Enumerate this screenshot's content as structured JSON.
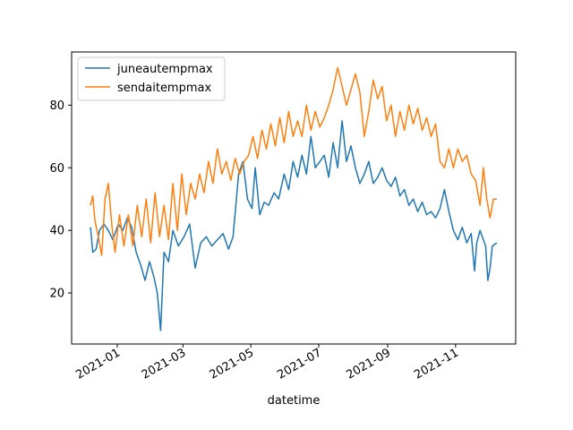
{
  "chart_data": {
    "type": "line",
    "title": "",
    "xlabel": "datetime",
    "ylabel": "",
    "x_start": "2020-12-08",
    "x_end": "2021-12-08",
    "xlim": [
      "2020-11-21",
      "2021-12-25"
    ],
    "ylim": [
      3.7,
      97.0
    ],
    "x_ticks": [
      {
        "date": "2021-01-01",
        "label": "2021-01"
      },
      {
        "date": "2021-03-01",
        "label": "2021-03"
      },
      {
        "date": "2021-05-01",
        "label": "2021-05"
      },
      {
        "date": "2021-07-01",
        "label": "2021-07"
      },
      {
        "date": "2021-09-01",
        "label": "2021-09"
      },
      {
        "date": "2021-11-01",
        "label": "2021-11"
      }
    ],
    "y_ticks": [
      20,
      40,
      60,
      80
    ],
    "grid": false,
    "legend": "top-left",
    "series": [
      {
        "name": "juneautempmax",
        "color": "#1f77b4",
        "points": [
          [
            "2020-12-08",
            41
          ],
          [
            "2020-12-10",
            33
          ],
          [
            "2020-12-13",
            34
          ],
          [
            "2020-12-16",
            40
          ],
          [
            "2020-12-20",
            42
          ],
          [
            "2020-12-24",
            40
          ],
          [
            "2020-12-28",
            37
          ],
          [
            "2021-01-02",
            42
          ],
          [
            "2021-01-06",
            40
          ],
          [
            "2021-01-10",
            44
          ],
          [
            "2021-01-14",
            41
          ],
          [
            "2021-01-18",
            33
          ],
          [
            "2021-01-22",
            29
          ],
          [
            "2021-01-26",
            24
          ],
          [
            "2021-01-30",
            30
          ],
          [
            "2021-02-03",
            25
          ],
          [
            "2021-02-06",
            20
          ],
          [
            "2021-02-09",
            8
          ],
          [
            "2021-02-12",
            33
          ],
          [
            "2021-02-16",
            30
          ],
          [
            "2021-02-20",
            40
          ],
          [
            "2021-02-25",
            35
          ],
          [
            "2021-03-02",
            38
          ],
          [
            "2021-03-07",
            42
          ],
          [
            "2021-03-12",
            28
          ],
          [
            "2021-03-17",
            36
          ],
          [
            "2021-03-22",
            38
          ],
          [
            "2021-03-27",
            35
          ],
          [
            "2021-04-01",
            37
          ],
          [
            "2021-04-06",
            39
          ],
          [
            "2021-04-11",
            34
          ],
          [
            "2021-04-15",
            38
          ],
          [
            "2021-04-20",
            58
          ],
          [
            "2021-04-24",
            62
          ],
          [
            "2021-04-28",
            50
          ],
          [
            "2021-05-02",
            47
          ],
          [
            "2021-05-05",
            60
          ],
          [
            "2021-05-09",
            45
          ],
          [
            "2021-05-13",
            49
          ],
          [
            "2021-05-17",
            48
          ],
          [
            "2021-05-22",
            52
          ],
          [
            "2021-05-26",
            50
          ],
          [
            "2021-05-31",
            58
          ],
          [
            "2021-06-04",
            53
          ],
          [
            "2021-06-08",
            62
          ],
          [
            "2021-06-12",
            57
          ],
          [
            "2021-06-16",
            64
          ],
          [
            "2021-06-20",
            58
          ],
          [
            "2021-06-24",
            70
          ],
          [
            "2021-06-28",
            60
          ],
          [
            "2021-07-02",
            62
          ],
          [
            "2021-07-06",
            64
          ],
          [
            "2021-07-10",
            57
          ],
          [
            "2021-07-14",
            68
          ],
          [
            "2021-07-18",
            60
          ],
          [
            "2021-07-22",
            75
          ],
          [
            "2021-07-26",
            62
          ],
          [
            "2021-07-30",
            67
          ],
          [
            "2021-08-03",
            60
          ],
          [
            "2021-08-07",
            55
          ],
          [
            "2021-08-11",
            58
          ],
          [
            "2021-08-15",
            62
          ],
          [
            "2021-08-19",
            55
          ],
          [
            "2021-08-23",
            57
          ],
          [
            "2021-08-27",
            60
          ],
          [
            "2021-08-31",
            56
          ],
          [
            "2021-09-04",
            54
          ],
          [
            "2021-09-08",
            57
          ],
          [
            "2021-09-12",
            51
          ],
          [
            "2021-09-16",
            53
          ],
          [
            "2021-09-20",
            48
          ],
          [
            "2021-09-24",
            50
          ],
          [
            "2021-09-28",
            46
          ],
          [
            "2021-10-02",
            49
          ],
          [
            "2021-10-06",
            45
          ],
          [
            "2021-10-10",
            46
          ],
          [
            "2021-10-14",
            44
          ],
          [
            "2021-10-18",
            47
          ],
          [
            "2021-10-22",
            53
          ],
          [
            "2021-10-26",
            46
          ],
          [
            "2021-10-30",
            40
          ],
          [
            "2021-11-03",
            37
          ],
          [
            "2021-11-07",
            41
          ],
          [
            "2021-11-11",
            36
          ],
          [
            "2021-11-15",
            39
          ],
          [
            "2021-11-18",
            27
          ],
          [
            "2021-11-20",
            36
          ],
          [
            "2021-11-23",
            40
          ],
          [
            "2021-11-26",
            37
          ],
          [
            "2021-11-28",
            35
          ],
          [
            "2021-11-30",
            24
          ],
          [
            "2021-12-02",
            28
          ],
          [
            "2021-12-04",
            35
          ],
          [
            "2021-12-08",
            36
          ]
        ]
      },
      {
        "name": "sendaitempmax",
        "color": "#ff7f0e",
        "points": [
          [
            "2020-12-08",
            48
          ],
          [
            "2020-12-10",
            51
          ],
          [
            "2020-12-12",
            43
          ],
          [
            "2020-12-15",
            38
          ],
          [
            "2020-12-18",
            32
          ],
          [
            "2020-12-21",
            50
          ],
          [
            "2020-12-24",
            55
          ],
          [
            "2020-12-27",
            42
          ],
          [
            "2020-12-30",
            33
          ],
          [
            "2021-01-03",
            45
          ],
          [
            "2021-01-07",
            35
          ],
          [
            "2021-01-11",
            45
          ],
          [
            "2021-01-15",
            35
          ],
          [
            "2021-01-19",
            48
          ],
          [
            "2021-01-23",
            38
          ],
          [
            "2021-01-27",
            50
          ],
          [
            "2021-01-31",
            36
          ],
          [
            "2021-02-04",
            52
          ],
          [
            "2021-02-08",
            38
          ],
          [
            "2021-02-12",
            48
          ],
          [
            "2021-02-16",
            37
          ],
          [
            "2021-02-20",
            55
          ],
          [
            "2021-02-24",
            40
          ],
          [
            "2021-02-28",
            58
          ],
          [
            "2021-03-04",
            45
          ],
          [
            "2021-03-08",
            55
          ],
          [
            "2021-03-12",
            50
          ],
          [
            "2021-03-16",
            58
          ],
          [
            "2021-03-20",
            52
          ],
          [
            "2021-03-24",
            62
          ],
          [
            "2021-03-28",
            55
          ],
          [
            "2021-04-01",
            66
          ],
          [
            "2021-04-05",
            58
          ],
          [
            "2021-04-09",
            62
          ],
          [
            "2021-04-13",
            56
          ],
          [
            "2021-04-17",
            63
          ],
          [
            "2021-04-21",
            58
          ],
          [
            "2021-04-25",
            62
          ],
          [
            "2021-04-29",
            64
          ],
          [
            "2021-05-03",
            70
          ],
          [
            "2021-05-07",
            63
          ],
          [
            "2021-05-11",
            72
          ],
          [
            "2021-05-15",
            66
          ],
          [
            "2021-05-19",
            74
          ],
          [
            "2021-05-23",
            67
          ],
          [
            "2021-05-27",
            76
          ],
          [
            "2021-05-31",
            68
          ],
          [
            "2021-06-04",
            78
          ],
          [
            "2021-06-08",
            70
          ],
          [
            "2021-06-12",
            75
          ],
          [
            "2021-06-16",
            70
          ],
          [
            "2021-06-20",
            80
          ],
          [
            "2021-06-24",
            72
          ],
          [
            "2021-06-28",
            78
          ],
          [
            "2021-07-02",
            73
          ],
          [
            "2021-07-06",
            76
          ],
          [
            "2021-07-10",
            80
          ],
          [
            "2021-07-14",
            85
          ],
          [
            "2021-07-18",
            92
          ],
          [
            "2021-07-22",
            86
          ],
          [
            "2021-07-26",
            80
          ],
          [
            "2021-07-30",
            85
          ],
          [
            "2021-08-03",
            90
          ],
          [
            "2021-08-07",
            84
          ],
          [
            "2021-08-11",
            70
          ],
          [
            "2021-08-15",
            78
          ],
          [
            "2021-08-19",
            88
          ],
          [
            "2021-08-23",
            82
          ],
          [
            "2021-08-27",
            86
          ],
          [
            "2021-08-31",
            75
          ],
          [
            "2021-09-04",
            80
          ],
          [
            "2021-09-08",
            70
          ],
          [
            "2021-09-12",
            78
          ],
          [
            "2021-09-16",
            72
          ],
          [
            "2021-09-20",
            80
          ],
          [
            "2021-09-24",
            74
          ],
          [
            "2021-09-28",
            79
          ],
          [
            "2021-10-02",
            72
          ],
          [
            "2021-10-06",
            76
          ],
          [
            "2021-10-10",
            70
          ],
          [
            "2021-10-14",
            74
          ],
          [
            "2021-10-18",
            62
          ],
          [
            "2021-10-22",
            60
          ],
          [
            "2021-10-26",
            66
          ],
          [
            "2021-10-30",
            60
          ],
          [
            "2021-11-03",
            66
          ],
          [
            "2021-11-07",
            62
          ],
          [
            "2021-11-11",
            64
          ],
          [
            "2021-11-15",
            58
          ],
          [
            "2021-11-19",
            56
          ],
          [
            "2021-11-23",
            48
          ],
          [
            "2021-11-26",
            60
          ],
          [
            "2021-11-29",
            50
          ],
          [
            "2021-12-02",
            44
          ],
          [
            "2021-12-05",
            50
          ],
          [
            "2021-12-08",
            50
          ]
        ]
      }
    ]
  }
}
